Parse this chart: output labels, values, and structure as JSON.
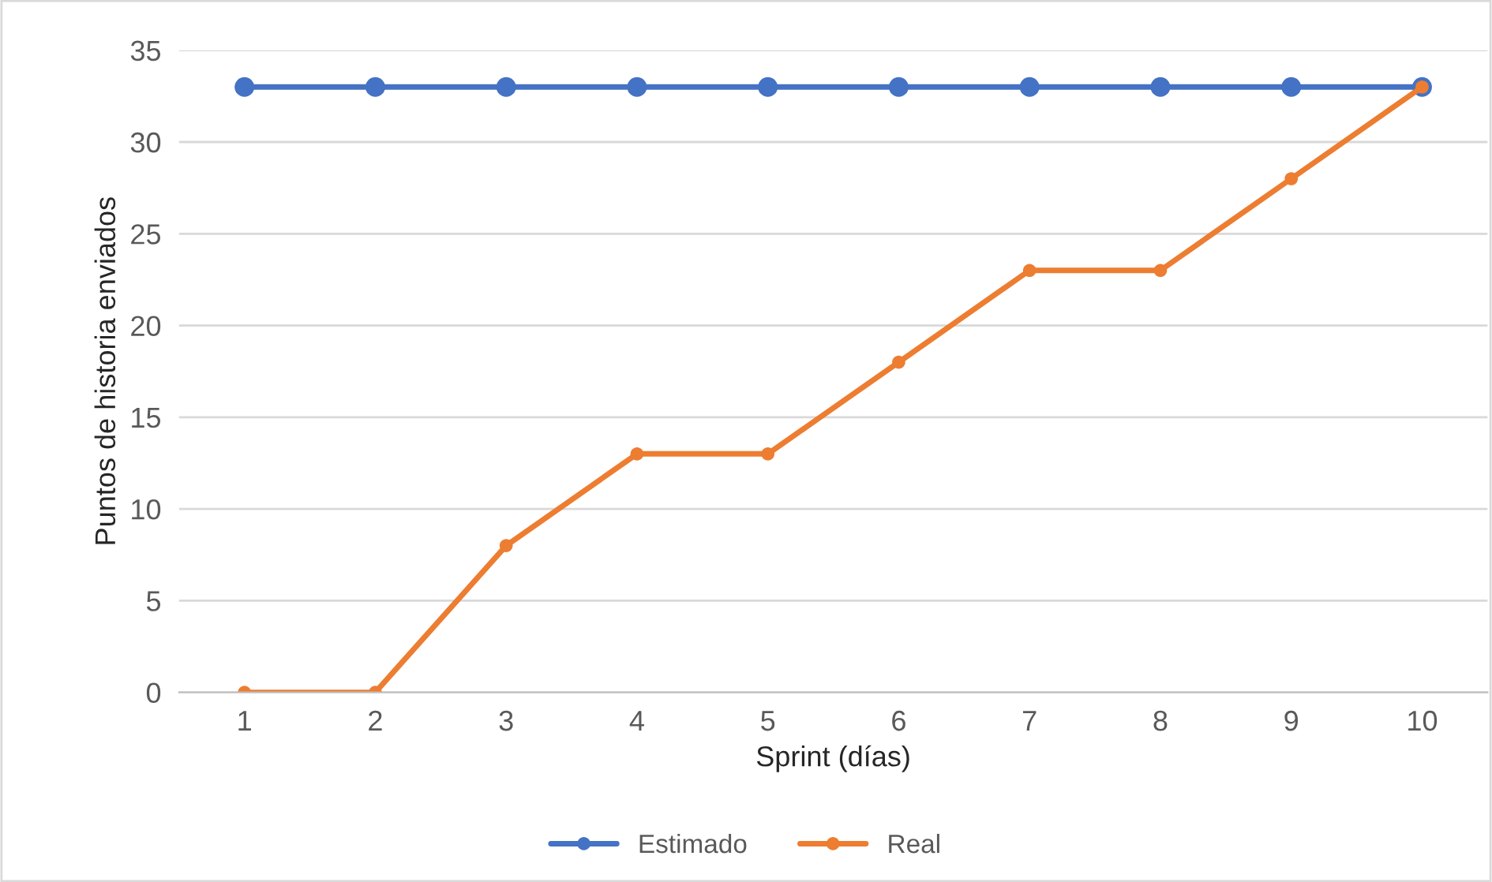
{
  "chart_data": {
    "type": "line",
    "xlabel": "Sprint (días)",
    "ylabel": "Puntos de historia enviados",
    "categories": [
      "1",
      "2",
      "3",
      "4",
      "5",
      "6",
      "7",
      "8",
      "9",
      "10"
    ],
    "series": [
      {
        "name": "Estimado",
        "color": "#4472c4",
        "values": [
          33,
          33,
          33,
          33,
          33,
          33,
          33,
          33,
          33,
          33
        ]
      },
      {
        "name": "Real",
        "color": "#ed7d31",
        "values": [
          0,
          0,
          8,
          13,
          13,
          18,
          23,
          23,
          28,
          33
        ]
      }
    ],
    "ylim": [
      0,
      35
    ],
    "yticks": [
      0,
      5,
      10,
      15,
      20,
      25,
      30,
      35
    ],
    "grid": "y",
    "legend": "bottom",
    "marker": "circle",
    "line_style": "solid"
  }
}
